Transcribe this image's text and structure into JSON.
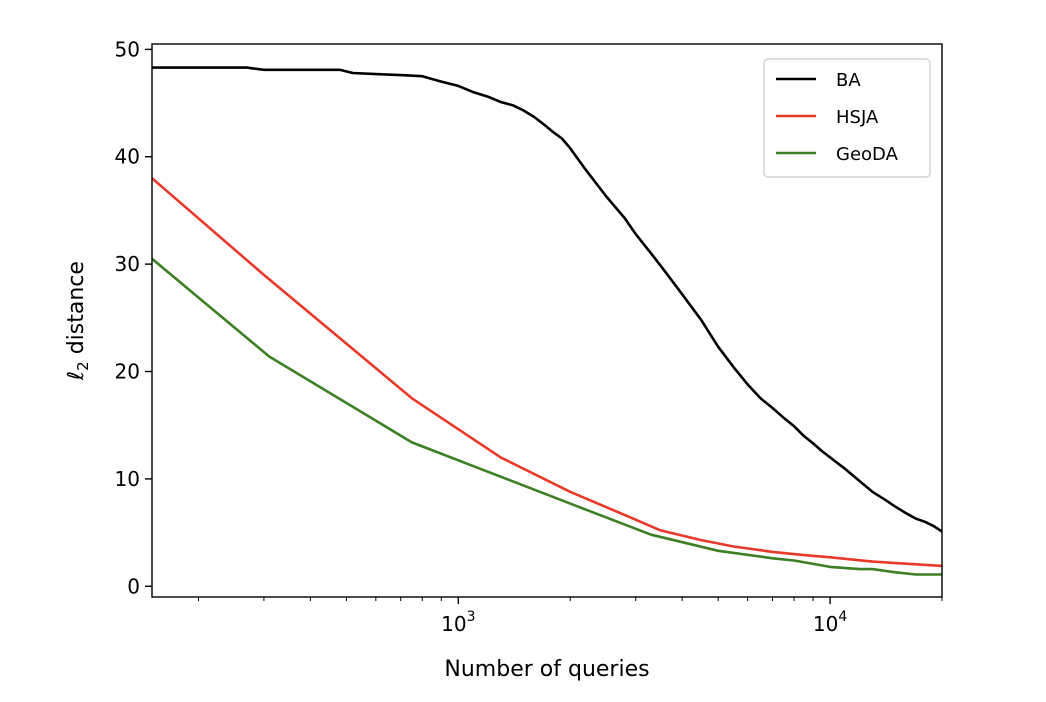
{
  "chart_data": {
    "type": "line",
    "xlabel": "Number of queries",
    "ylabel_main": "ℓ",
    "ylabel_sub": "2",
    "ylabel_rest": " distance",
    "x_scale": "log",
    "xlim": [
      150,
      20000
    ],
    "ylim": [
      -1,
      50.5
    ],
    "y_ticks": [
      0,
      10,
      20,
      30,
      40,
      50
    ],
    "x_major_ticks": [
      {
        "value": 1000,
        "base": "10",
        "exp": "3"
      },
      {
        "value": 10000,
        "base": "10",
        "exp": "4"
      }
    ],
    "x_minor_ticks": [
      200,
      300,
      400,
      500,
      600,
      700,
      800,
      900,
      2000,
      3000,
      4000,
      5000,
      6000,
      7000,
      8000,
      9000,
      20000
    ],
    "grid": false,
    "legend_position": "top-right",
    "series": [
      {
        "name": "BA",
        "color": "#000000",
        "x": [
          150,
          200,
          270,
          300,
          400,
          480,
          520,
          600,
          700,
          800,
          900,
          1000,
          1100,
          1200,
          1300,
          1400,
          1500,
          1600,
          1700,
          1800,
          1900,
          2000,
          2200,
          2500,
          2800,
          3000,
          3300,
          3600,
          4000,
          4500,
          5000,
          5500,
          6000,
          6500,
          7000,
          7500,
          8000,
          8500,
          9000,
          9500,
          10000,
          11000,
          12000,
          13000,
          14000,
          15000,
          16000,
          17000,
          18000,
          19000,
          20000
        ],
        "y": [
          48.3,
          48.3,
          48.3,
          48.1,
          48.1,
          48.1,
          47.8,
          47.7,
          47.6,
          47.5,
          47.0,
          46.6,
          46.0,
          45.6,
          45.1,
          44.8,
          44.3,
          43.7,
          43.0,
          42.3,
          41.7,
          40.8,
          38.8,
          36.3,
          34.3,
          32.8,
          31.0,
          29.3,
          27.2,
          24.8,
          22.3,
          20.4,
          18.8,
          17.5,
          16.6,
          15.7,
          14.9,
          14.0,
          13.3,
          12.6,
          12.0,
          10.9,
          9.8,
          8.8,
          8.1,
          7.4,
          6.8,
          6.3,
          6.0,
          5.6,
          5.1
        ]
      },
      {
        "name": "HSJA",
        "color": "#e8392a",
        "x": [
          150,
          300,
          750,
          1300,
          2000,
          3000,
          3500,
          4500,
          5500,
          7000,
          8500,
          10000,
          13000,
          16000,
          20000
        ],
        "y": [
          38.0,
          29.0,
          17.5,
          12.0,
          8.8,
          6.2,
          5.2,
          4.3,
          3.7,
          3.2,
          2.9,
          2.7,
          2.3,
          2.1,
          1.9
        ]
      },
      {
        "name": "GeoDA",
        "color": "#3d7f24",
        "x": [
          150,
          310,
          750,
          1300,
          2000,
          3300,
          5000,
          7000,
          8000,
          10000,
          12000,
          13000,
          15000,
          17000,
          19000,
          20000
        ],
        "y": [
          30.5,
          21.4,
          13.4,
          10.2,
          7.7,
          4.8,
          3.3,
          2.6,
          2.4,
          1.8,
          1.6,
          1.6,
          1.3,
          1.1,
          1.1,
          1.1
        ]
      }
    ]
  }
}
